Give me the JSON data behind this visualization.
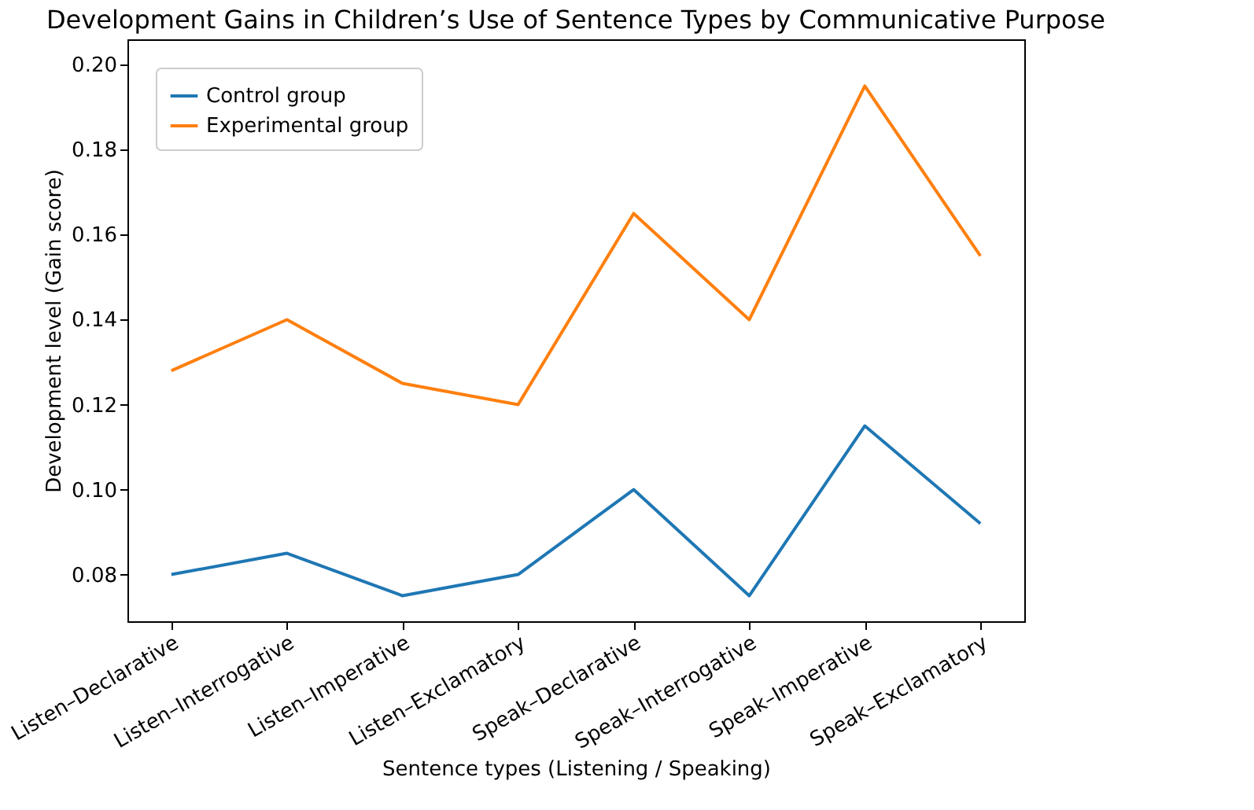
{
  "chart_data": {
    "type": "line",
    "title": "Development Gains in Children’s Use of Sentence Types by Communicative Purpose",
    "xlabel": "Sentence types (Listening / Speaking)",
    "ylabel": "Development level (Gain score)",
    "categories": [
      "Listen–Declarative",
      "Listen–Interrogative",
      "Listen–Imperative",
      "Listen–Exclamatory",
      "Speak–Declarative",
      "Speak–Interrogative",
      "Speak–Imperative",
      "Speak–Exclamatory"
    ],
    "series": [
      {
        "name": "Control group",
        "color": "#1f77b4",
        "values": [
          0.08,
          0.085,
          0.075,
          0.08,
          0.1,
          0.075,
          0.115,
          0.092
        ]
      },
      {
        "name": "Experimental group",
        "color": "#ff7f0e",
        "values": [
          0.128,
          0.14,
          0.125,
          0.12,
          0.165,
          0.14,
          0.195,
          0.155
        ]
      }
    ],
    "ylim": [
      0.069,
      0.206
    ],
    "yticks": [
      {
        "value": 0.08,
        "label": "0.08"
      },
      {
        "value": 0.1,
        "label": "0.10"
      },
      {
        "value": 0.12,
        "label": "0.12"
      },
      {
        "value": 0.14,
        "label": "0.14"
      },
      {
        "value": 0.16,
        "label": "0.16"
      },
      {
        "value": 0.18,
        "label": "0.18"
      },
      {
        "value": 0.2,
        "label": "0.20"
      }
    ],
    "grid": false,
    "legend": "top left",
    "marker": "none",
    "line_style": "solid"
  }
}
